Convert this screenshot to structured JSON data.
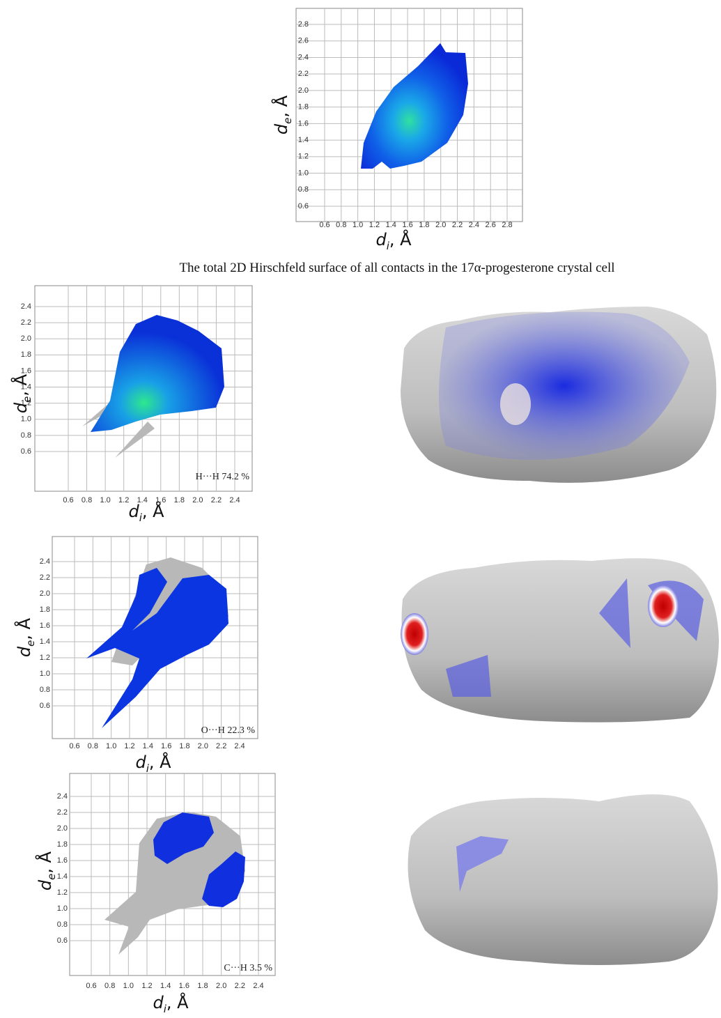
{
  "figure": {
    "caption": "The total 2D Hirschfeld surface of all contacts in the 17α-progesterone crystal cell",
    "plots": [
      {
        "xticks": [
          0.6,
          0.8,
          {
            "value": 1,
            "label": "1.0"
          },
          1.2,
          1.4,
          1.6,
          1.8,
          {
            "value": 2,
            "label": "2.0"
          },
          2.2,
          2.4,
          2.6,
          2.8
        ],
        "yticks": [
          0.6,
          0.8,
          {
            "value": 1,
            "label": "1.0"
          },
          1.2,
          1.4,
          1.6,
          1.8,
          {
            "value": 2,
            "label": "2.0"
          },
          2.2,
          2.4,
          2.6,
          2.8
        ],
        "y_label": {
          "symbol": "d",
          "subscript": "e",
          "unit": ", Å"
        },
        "x_label": {
          "symbol": "d",
          "subscript": "i",
          "unit": ", Å"
        }
      },
      {
        "xticks": [
          0.6,
          0.8,
          {
            "value": 1,
            "label": "1.0"
          },
          1.2,
          1.4,
          1.6,
          1.8,
          {
            "value": 2,
            "label": "2.0"
          },
          2.2,
          2.4
        ],
        "yticks": [
          0.6,
          0.8,
          {
            "value": 1,
            "label": "1.0"
          },
          1.2,
          1.4,
          1.6,
          1.8,
          {
            "value": 2,
            "label": "2.0"
          },
          2.2,
          2.4
        ],
        "y_label": {
          "symbol": "d",
          "subscript": "e",
          "unit": ", Å"
        },
        "x_label": {
          "symbol": "d",
          "subscript": "i",
          "unit": ", Å"
        },
        "contact": "H···H  74.2 %"
      },
      {
        "xticks": [
          0.6,
          0.8,
          {
            "value": 1,
            "label": "1.0"
          },
          1.2,
          1.4,
          1.6,
          1.8,
          {
            "value": 2,
            "label": "2.0"
          },
          2.2,
          2.4
        ],
        "yticks": [
          0.6,
          0.8,
          {
            "value": 1,
            "label": "1.0"
          },
          1.2,
          1.4,
          1.6,
          1.8,
          {
            "value": 2,
            "label": "2.0"
          },
          2.2,
          2.4
        ],
        "y_label": {
          "symbol": "d",
          "subscript": "e",
          "unit": ", Å"
        },
        "x_label": {
          "symbol": "d",
          "subscript": "i",
          "unit": ", Å"
        },
        "contact": "O···H 22.3 %"
      },
      {
        "xticks": [
          0.6,
          0.8,
          {
            "value": 1,
            "label": "1.0"
          },
          1.2,
          1.4,
          1.6,
          1.8,
          {
            "value": 2,
            "label": "2.0"
          },
          2.2,
          2.4
        ],
        "yticks": [
          0.6,
          0.8,
          {
            "value": 1,
            "label": "1.0"
          },
          1.2,
          1.4,
          1.6,
          1.8,
          {
            "value": 2,
            "label": "2.0"
          },
          2.2,
          2.4
        ],
        "y_label": {
          "symbol": "d",
          "subscript": "e",
          "unit": ", Å"
        },
        "x_label": {
          "symbol": "d",
          "subscript": "i",
          "unit": ", Å"
        },
        "contact": "C···H 3.5 %"
      }
    ]
  }
}
